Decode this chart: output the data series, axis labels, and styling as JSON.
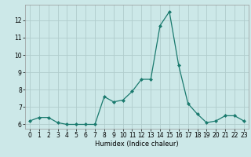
{
  "x": [
    0,
    1,
    2,
    3,
    4,
    5,
    6,
    7,
    8,
    9,
    10,
    11,
    12,
    13,
    14,
    15,
    16,
    17,
    18,
    19,
    20,
    21,
    22,
    23
  ],
  "y": [
    6.2,
    6.4,
    6.4,
    6.1,
    6.0,
    6.0,
    6.0,
    6.0,
    7.6,
    7.3,
    7.4,
    7.9,
    8.6,
    8.6,
    11.7,
    12.5,
    9.4,
    7.2,
    6.6,
    6.1,
    6.2,
    6.5,
    6.5,
    6.2
  ],
  "line_color": "#1a7a6e",
  "marker": "D",
  "marker_size": 2.0,
  "bg_color": "#cce8e8",
  "grid_color_major": "#b0cccc",
  "grid_color_minor": "#c8e0e0",
  "xlabel": "Humidex (Indice chaleur)",
  "yticks": [
    6,
    7,
    8,
    9,
    10,
    11,
    12
  ],
  "xlim": [
    -0.5,
    23.5
  ],
  "ylim": [
    5.75,
    12.9
  ],
  "xlabel_fontsize": 6.0,
  "tick_fontsize": 5.5,
  "linewidth": 0.9
}
